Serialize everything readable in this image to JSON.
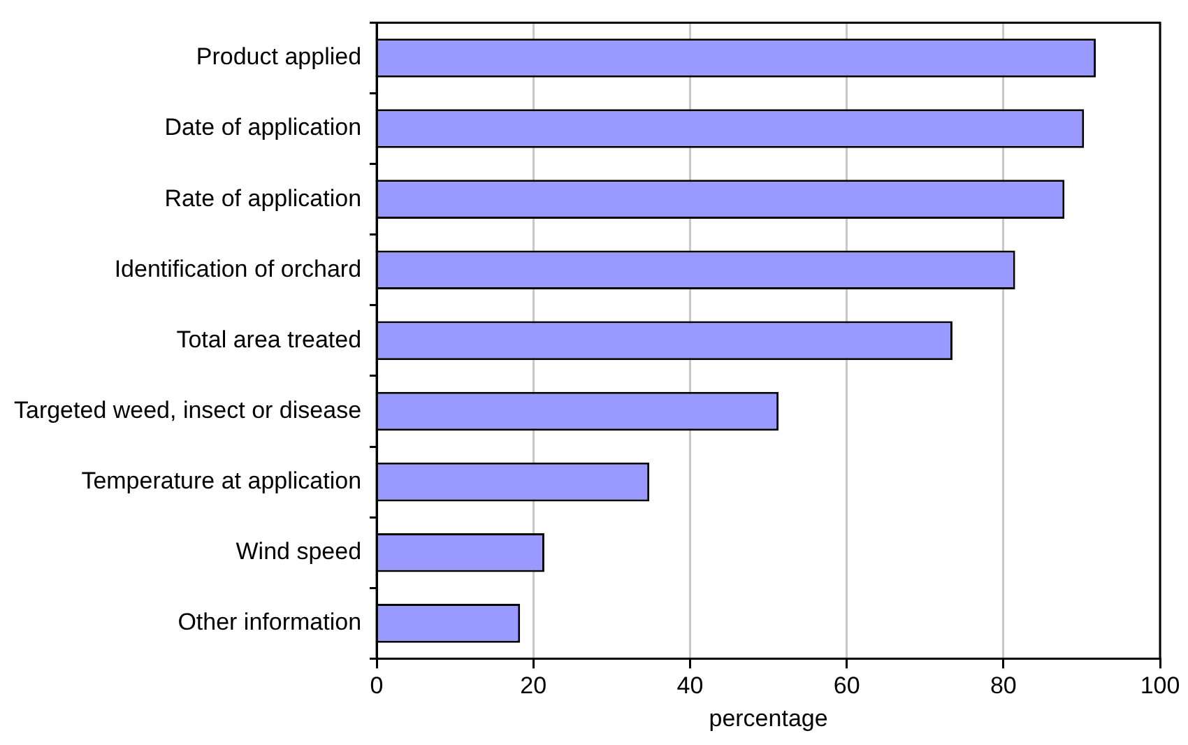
{
  "chart_data": {
    "type": "bar",
    "orientation": "horizontal",
    "xlabel": "percentage",
    "categories": [
      "Product applied",
      "Date of application",
      "Rate of application",
      "Identification of orchard",
      "Total area treated",
      "Targeted weed, insect or disease",
      "Temperature at application",
      "Wind speed",
      "Other information"
    ],
    "values": [
      91.8,
      90.3,
      87.8,
      81.5,
      73.5,
      51.3,
      34.8,
      21.4,
      18.3
    ],
    "color": "#9999ff",
    "xlim": [
      0,
      100
    ],
    "xticks": [
      0,
      20,
      40,
      60,
      80,
      100
    ],
    "grid": "x",
    "legend": false
  }
}
